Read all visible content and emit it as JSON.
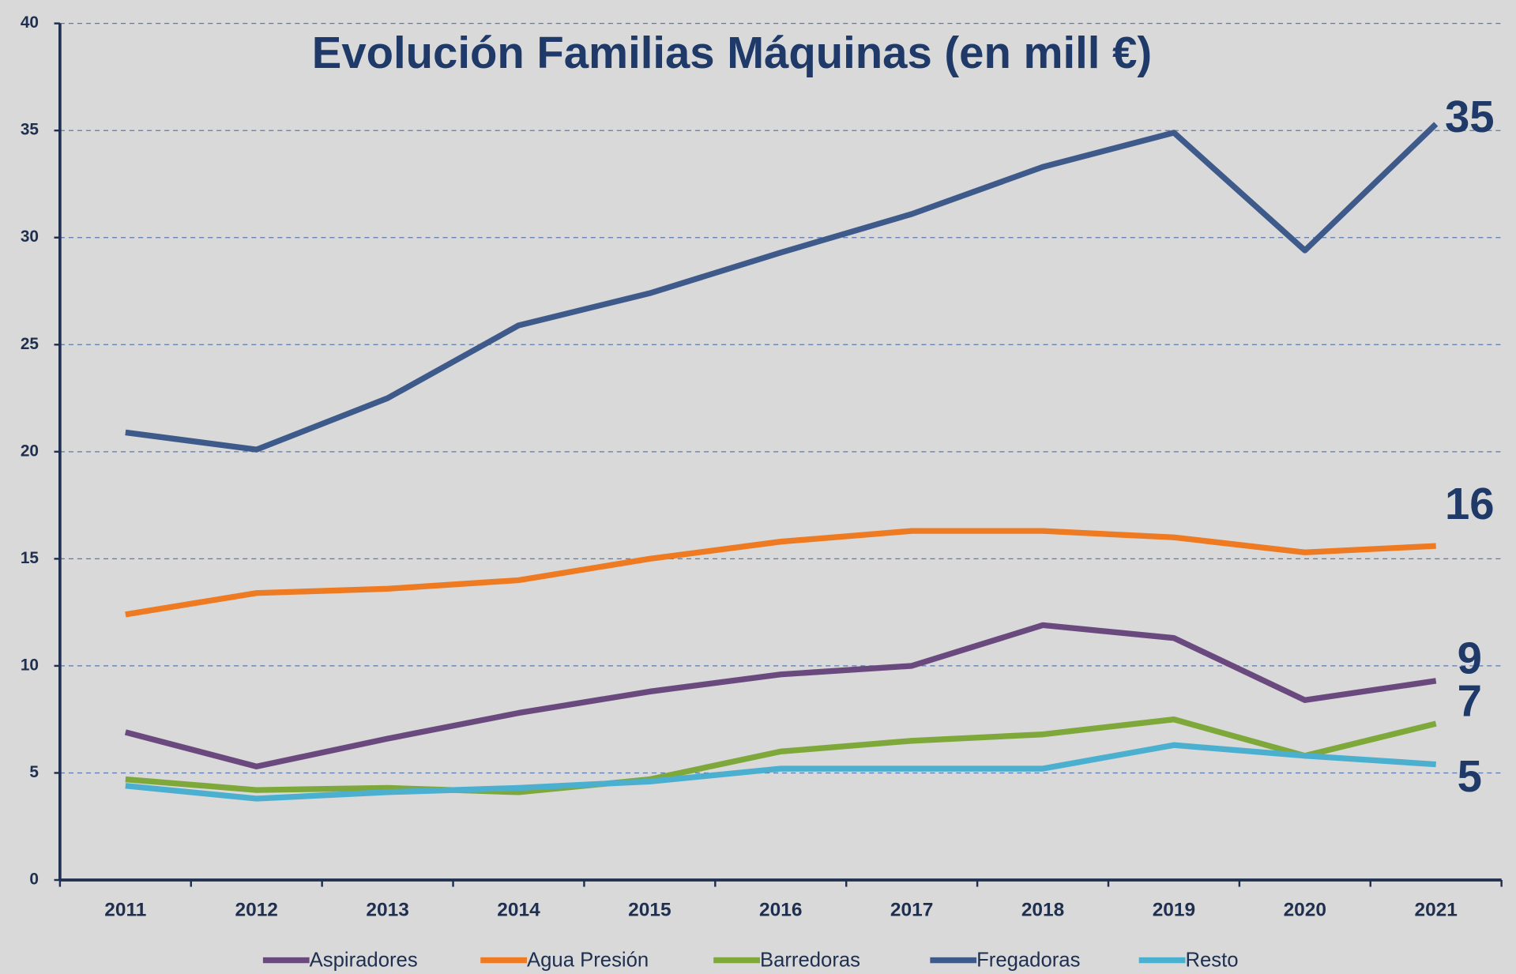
{
  "chart_data": {
    "type": "line",
    "title": "Evolución Familias Máquinas (en mill €)",
    "categories": [
      "2011",
      "2012",
      "2013",
      "2014",
      "2015",
      "2016",
      "2017",
      "2018",
      "2019",
      "2020",
      "2021"
    ],
    "series": [
      {
        "name": "Aspiradores",
        "color": "#6a4a7e",
        "values": [
          6.9,
          5.3,
          6.6,
          7.8,
          8.8,
          9.6,
          10.0,
          11.9,
          11.3,
          8.4,
          9.3
        ],
        "end_label": "9"
      },
      {
        "name": "Agua Presión",
        "color": "#ee7a22",
        "values": [
          12.4,
          13.4,
          13.6,
          14.0,
          15.0,
          15.8,
          16.3,
          16.3,
          16.0,
          15.3,
          15.6
        ],
        "end_label": "16"
      },
      {
        "name": "Barredoras",
        "color": "#7ea83a",
        "values": [
          4.7,
          4.2,
          4.3,
          4.1,
          4.7,
          6.0,
          6.5,
          6.8,
          7.5,
          5.8,
          7.3
        ],
        "end_label": "7"
      },
      {
        "name": "Fregadoras",
        "color": "#3d5a8a",
        "values": [
          20.9,
          20.1,
          22.5,
          25.9,
          27.4,
          29.3,
          31.1,
          33.3,
          34.9,
          29.4,
          35.3
        ],
        "end_label": "35"
      },
      {
        "name": "Resto",
        "color": "#4bb0d0",
        "values": [
          4.4,
          3.8,
          4.1,
          4.3,
          4.6,
          5.2,
          5.2,
          5.2,
          6.3,
          5.8,
          5.4
        ],
        "end_label": "5"
      }
    ],
    "ylim": [
      0,
      40
    ],
    "yticks": [
      0,
      5,
      10,
      15,
      20,
      25,
      30,
      35,
      40
    ],
    "grid": true,
    "legend": "bottom"
  }
}
